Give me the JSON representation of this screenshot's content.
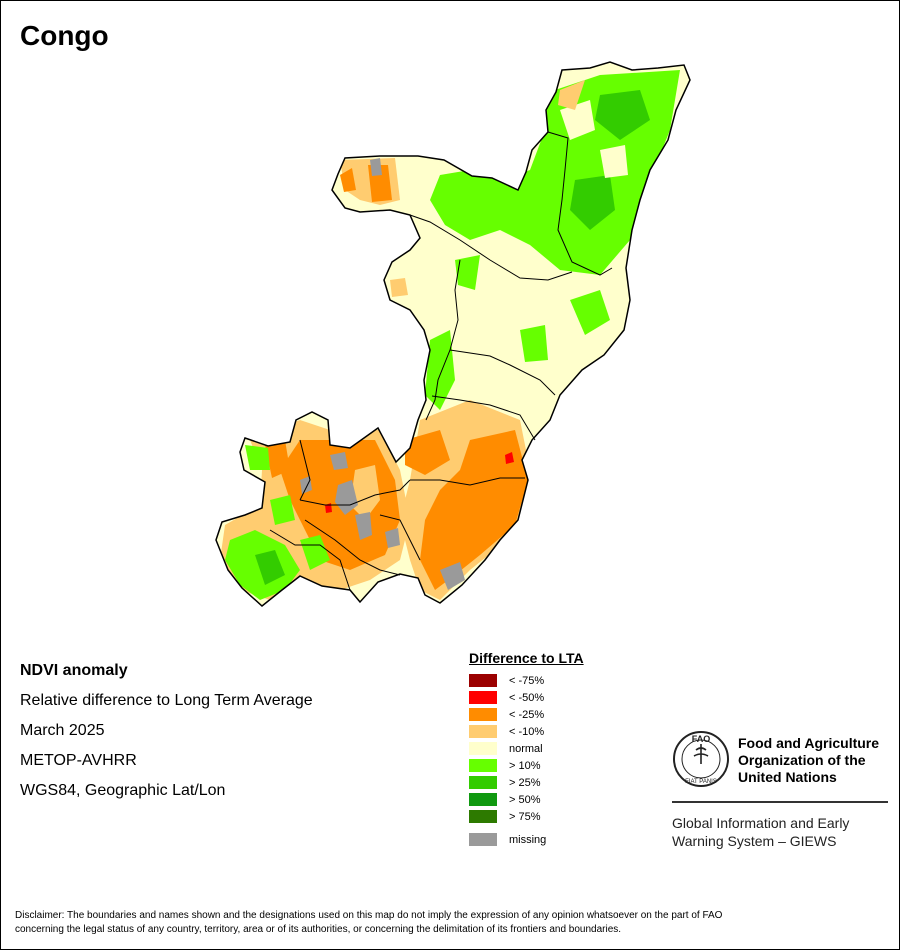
{
  "title": "Congo",
  "info": {
    "heading": "NDVI anomaly",
    "subtitle": "Relative difference to Long Term Average",
    "date": "March 2025",
    "sensor": "METOP-AVHRR",
    "projection": "WGS84, Geographic Lat/Lon"
  },
  "legend": {
    "title": "Difference to LTA",
    "items": [
      {
        "label": "< -75%",
        "color": "#9b0000"
      },
      {
        "label": "< -50%",
        "color": "#ff0000"
      },
      {
        "label": "< -25%",
        "color": "#ff8c00"
      },
      {
        "label": "< -10%",
        "color": "#ffcc70"
      },
      {
        "label": "normal",
        "color": "#ffffcc"
      },
      {
        "label": "> 10%",
        "color": "#66ff00"
      },
      {
        "label": "> 25%",
        "color": "#33cc00"
      },
      {
        "label": "> 50%",
        "color": "#109910"
      },
      {
        "label": "> 75%",
        "color": "#2d7a00"
      }
    ],
    "missing": {
      "label": "missing",
      "color": "#9a9a9a"
    }
  },
  "org": {
    "name_line1": "Food and Agriculture",
    "name_line2": "Organization of the",
    "name_line3": "United Nations",
    "program_line1": "Global Information and Early",
    "program_line2": "Warning System – GIEWS",
    "logo_letters": "FAO",
    "logo_motto": "FIAT PANIS"
  },
  "disclaimer_line1": "Disclaimer: The boundaries and names shown and the designations used on this map do not imply the expression of any opinion whatsoever on the part of FAO",
  "disclaimer_line2": "concerning the legal status of any country, territory, area or of its authorities, or concerning the delimitation of its frontiers and boundaries."
}
